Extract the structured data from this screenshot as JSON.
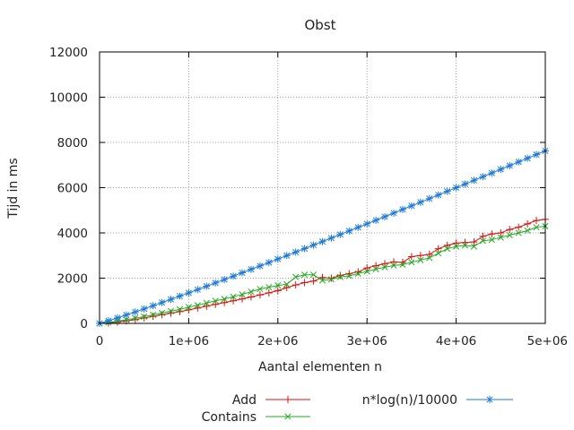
{
  "chart_data": {
    "type": "line",
    "title": "Obst",
    "xlabel": "Aantal elementen n",
    "ylabel": "Tijd in ms",
    "xlim": [
      0,
      5000000
    ],
    "ylim": [
      0,
      12000
    ],
    "grid": true,
    "legend_position": "bottom",
    "x_ticks": [
      {
        "value": 0,
        "label": "0"
      },
      {
        "value": 1000000,
        "label": "1e+06"
      },
      {
        "value": 2000000,
        "label": "2e+06"
      },
      {
        "value": 3000000,
        "label": "3e+06"
      },
      {
        "value": 4000000,
        "label": "4e+06"
      },
      {
        "value": 5000000,
        "label": "5e+06"
      }
    ],
    "y_ticks": [
      {
        "value": 0,
        "label": "0"
      },
      {
        "value": 2000,
        "label": "2000"
      },
      {
        "value": 4000,
        "label": "4000"
      },
      {
        "value": 6000,
        "label": "6000"
      },
      {
        "value": 8000,
        "label": "8000"
      },
      {
        "value": 10000,
        "label": "10000"
      },
      {
        "value": 12000,
        "label": "12000"
      }
    ],
    "x": [
      0,
      100000,
      200000,
      300000,
      400000,
      500000,
      600000,
      700000,
      800000,
      900000,
      1000000,
      1100000,
      1200000,
      1300000,
      1400000,
      1500000,
      1600000,
      1700000,
      1800000,
      1900000,
      2000000,
      2100000,
      2200000,
      2300000,
      2400000,
      2500000,
      2600000,
      2700000,
      2800000,
      2900000,
      3000000,
      3100000,
      3200000,
      3300000,
      3400000,
      3500000,
      3600000,
      3700000,
      3800000,
      3900000,
      4000000,
      4100000,
      4200000,
      4300000,
      4400000,
      4500000,
      4600000,
      4700000,
      4800000,
      4900000,
      5000000
    ],
    "series": [
      {
        "name": "Add",
        "color": "#dd1111",
        "marker": "plus",
        "values": [
          0,
          20,
          60,
          110,
          170,
          240,
          310,
          380,
          450,
          520,
          600,
          680,
          760,
          840,
          920,
          1000,
          1080,
          1170,
          1260,
          1350,
          1450,
          1580,
          1700,
          1800,
          1870,
          2030,
          2000,
          2120,
          2200,
          2280,
          2450,
          2550,
          2640,
          2720,
          2700,
          2950,
          3000,
          3050,
          3300,
          3450,
          3550,
          3580,
          3600,
          3850,
          3950,
          4000,
          4150,
          4250,
          4400,
          4550,
          4600
        ]
      },
      {
        "name": "Contains",
        "color": "#22aa22",
        "marker": "cross",
        "values": [
          0,
          40,
          100,
          160,
          230,
          300,
          380,
          460,
          540,
          620,
          720,
          800,
          900,
          1000,
          1080,
          1180,
          1280,
          1400,
          1520,
          1600,
          1680,
          1730,
          2050,
          2150,
          2150,
          1900,
          1950,
          2050,
          2100,
          2200,
          2300,
          2400,
          2480,
          2560,
          2600,
          2700,
          2800,
          2900,
          3100,
          3300,
          3400,
          3450,
          3400,
          3650,
          3700,
          3800,
          3900,
          4000,
          4100,
          4250,
          4300
        ]
      },
      {
        "name": "n*log(n)/10000",
        "color": "#1e7ad6",
        "marker": "star",
        "values": [
          0,
          115,
          241,
          372,
          505,
          641,
          780,
          920,
          1062,
          1205,
          1349,
          1495,
          1641,
          1789,
          1937,
          2087,
          2237,
          2388,
          2539,
          2691,
          2844,
          2997,
          3151,
          3306,
          3461,
          3616,
          3772,
          3929,
          4086,
          4243,
          4401,
          4559,
          4717,
          4876,
          5036,
          5195,
          5355,
          5516,
          5677,
          5838,
          5999,
          6161,
          6323,
          6485,
          6647,
          6810,
          6973,
          7137,
          7300,
          7464,
          7628
        ]
      }
    ]
  }
}
